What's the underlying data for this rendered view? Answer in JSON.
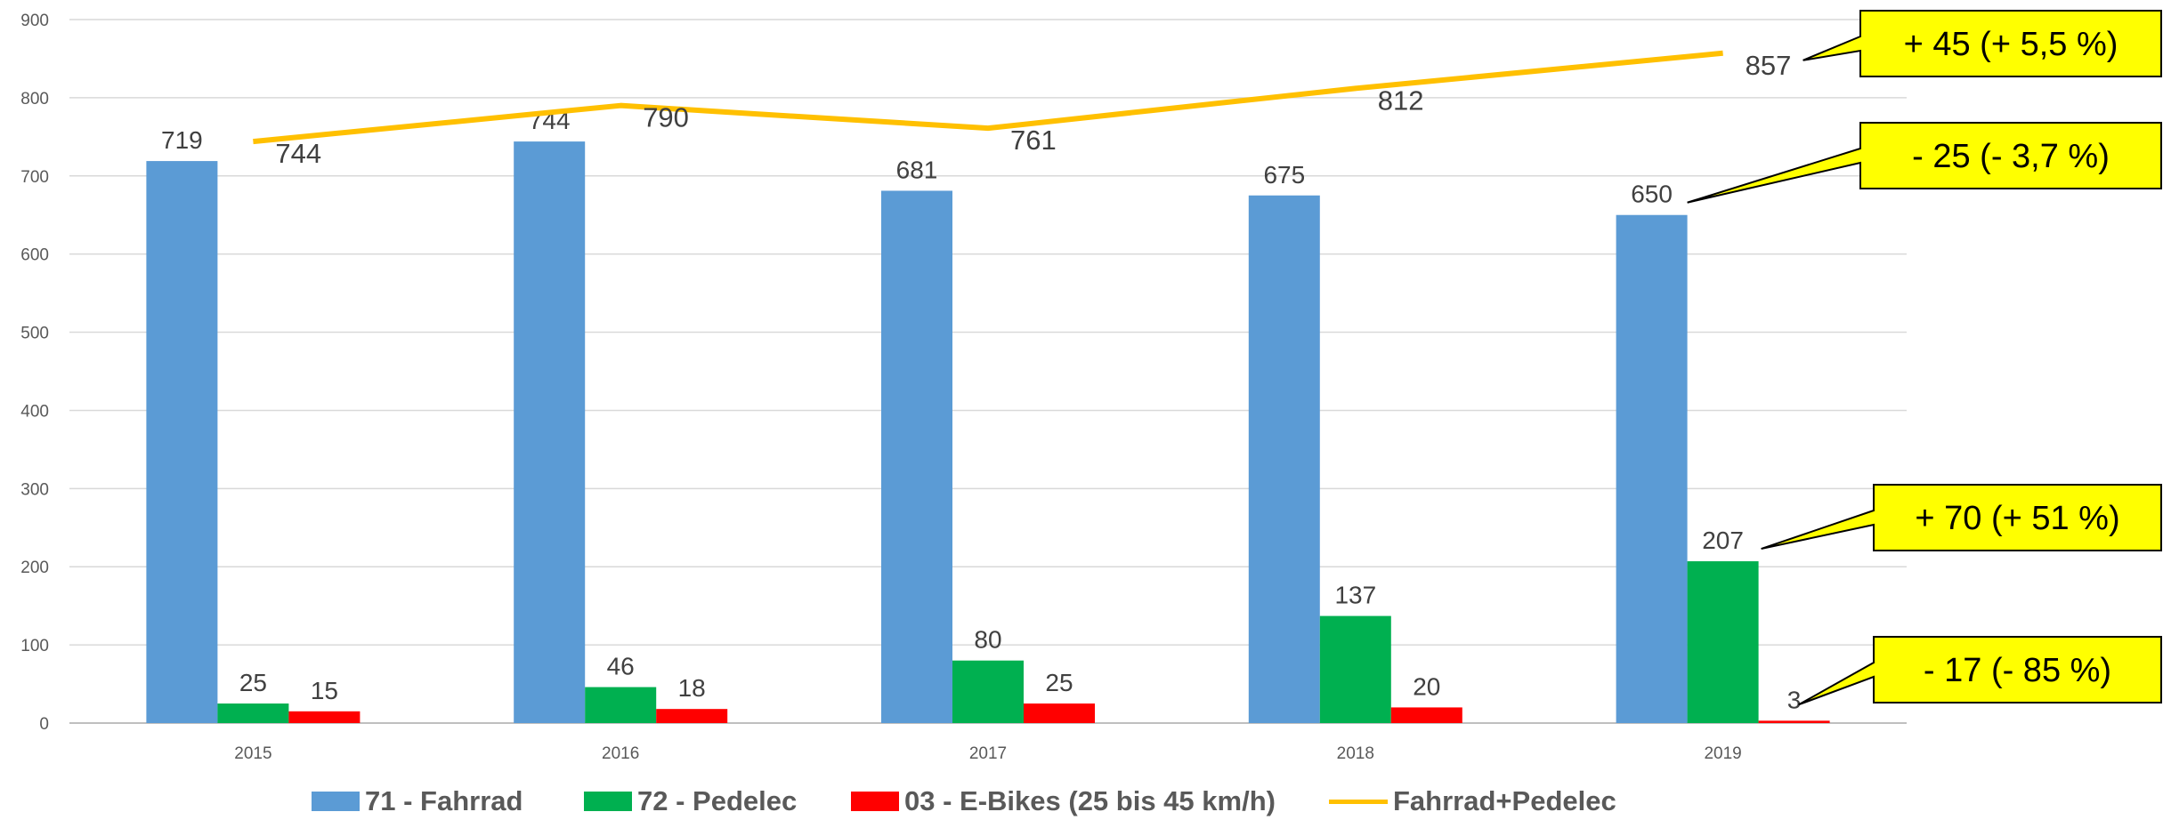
{
  "chart_data": {
    "type": "bar",
    "categories": [
      "2015",
      "2016",
      "2017",
      "2018",
      "2019"
    ],
    "ylim": [
      0,
      900
    ],
    "yticks": [
      0,
      100,
      200,
      300,
      400,
      500,
      600,
      700,
      800,
      900
    ],
    "grid": true,
    "legend_position": "bottom",
    "series": [
      {
        "name": "71 - Fahrrad",
        "kind": "bar",
        "color": "#5B9BD5",
        "values": [
          719,
          744,
          681,
          675,
          650
        ]
      },
      {
        "name": "72 - Pedelec",
        "kind": "bar",
        "color": "#00B050",
        "values": [
          25,
          46,
          80,
          137,
          207
        ]
      },
      {
        "name": "03 - E-Bikes (25 bis 45 km/h)",
        "kind": "bar",
        "color": "#FF0000",
        "values": [
          15,
          18,
          25,
          20,
          3
        ]
      },
      {
        "name": "Fahrrad+Pedelec",
        "kind": "line",
        "color": "#FFC000",
        "values": [
          744,
          790,
          761,
          812,
          857
        ]
      }
    ],
    "callouts": [
      {
        "text": "+ 45 (+ 5,5 %)",
        "series": 3
      },
      {
        "text": "- 25 (- 3,7 %)",
        "series": 0
      },
      {
        "text": "+ 70 (+ 51 %)",
        "series": 1
      },
      {
        "text": "- 17 (- 85 %)",
        "series": 2
      }
    ],
    "callout_color": "#FFFF00"
  }
}
